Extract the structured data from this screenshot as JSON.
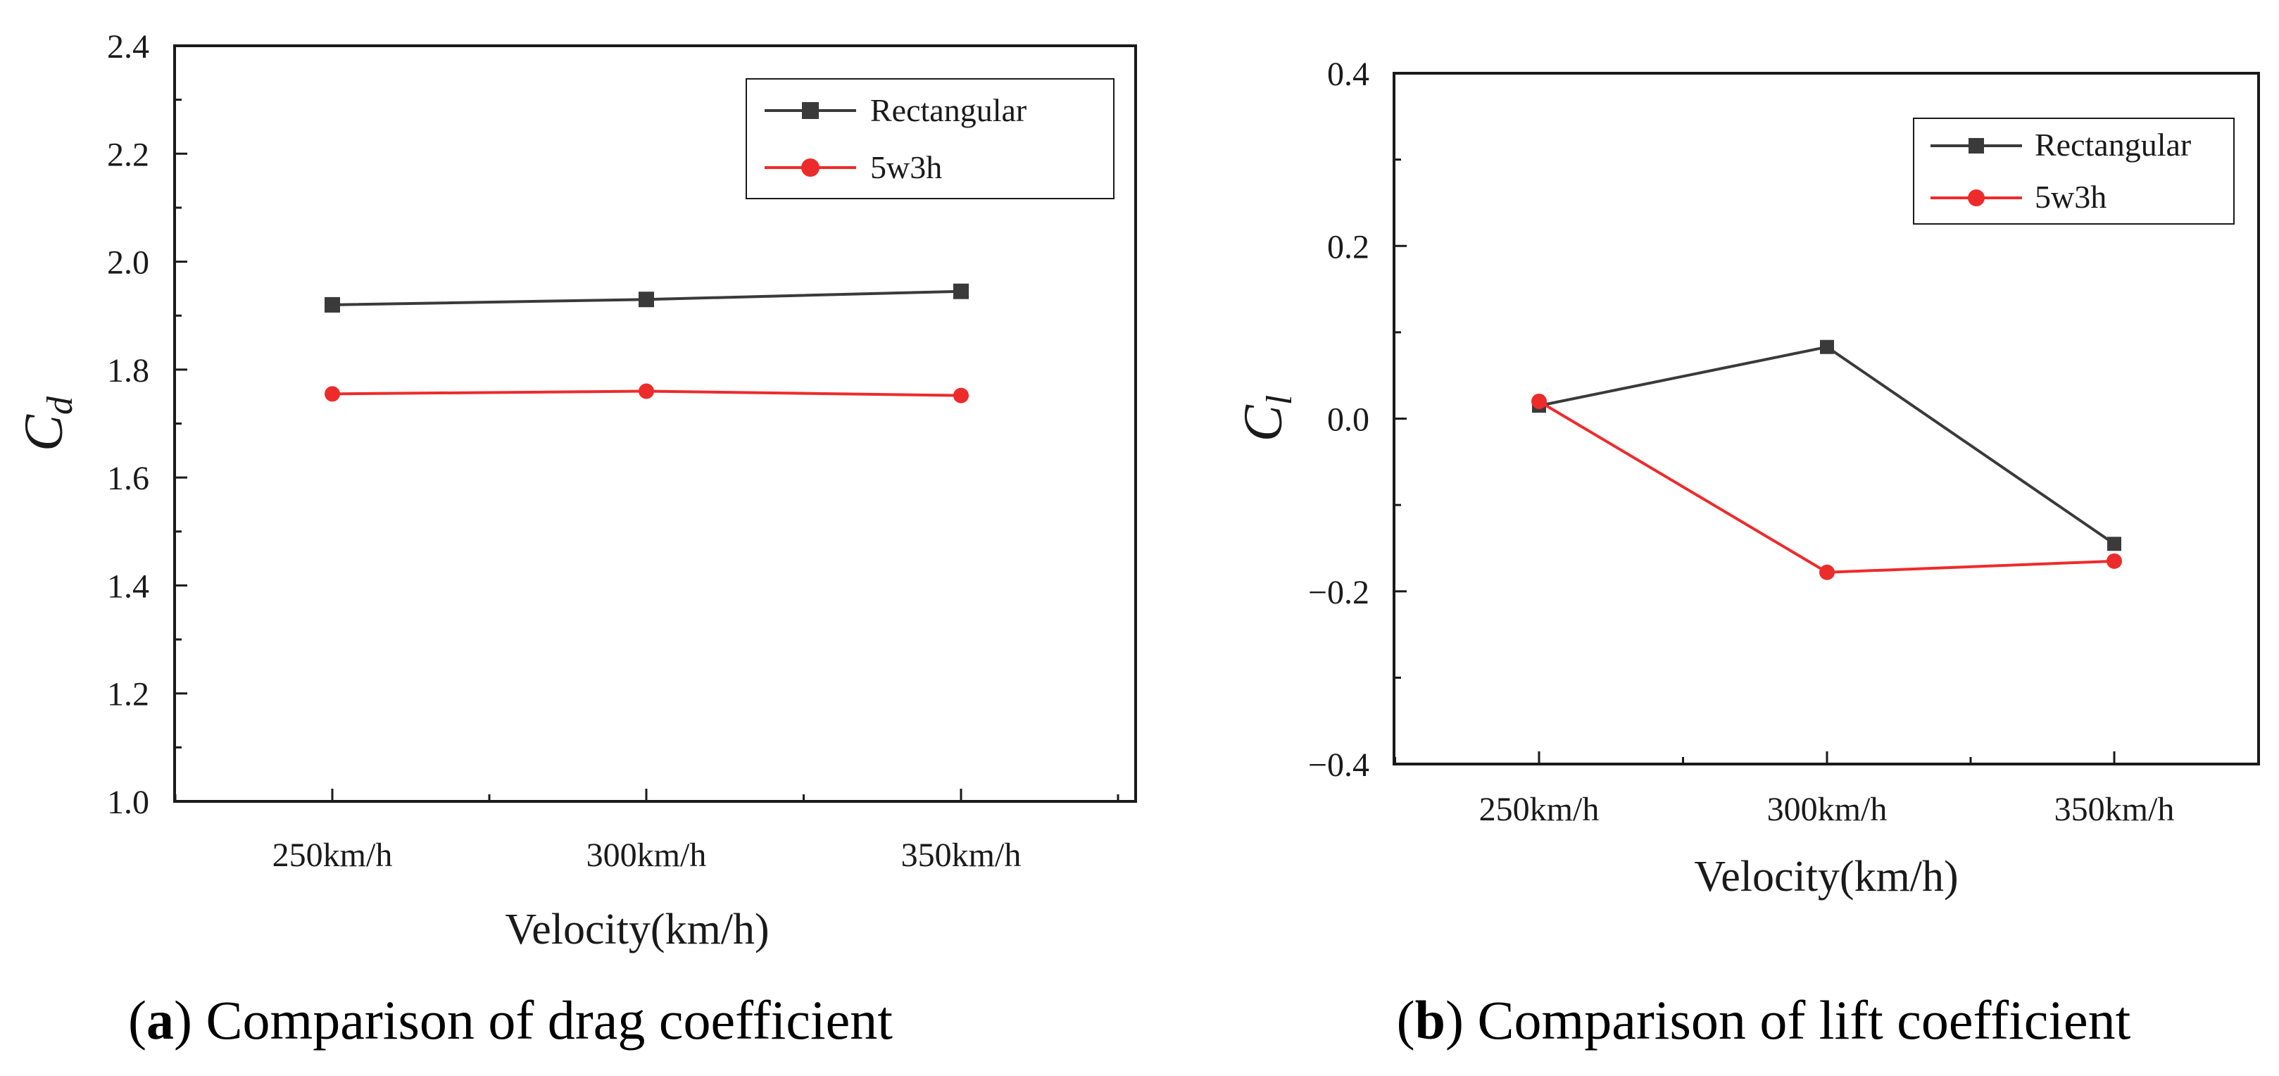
{
  "colors": {
    "rectangular": "#3a3a3a",
    "fivew3h": "#ee2b2b",
    "axis": "#1a1a1a"
  },
  "chart_data": [
    {
      "type": "line",
      "panel": "a",
      "title": "",
      "xlabel": "Velocity(km/h)",
      "ylabel_main": "C",
      "ylabel_sub": "d",
      "categories": [
        "250km/h",
        "300km/h",
        "350km/h"
      ],
      "ylim": [
        1.0,
        2.4
      ],
      "yticks": [
        "1.0",
        "1.2",
        "1.4",
        "1.6",
        "1.8",
        "2.0",
        "2.2",
        "2.4"
      ],
      "series": [
        {
          "name": "Rectangular",
          "marker": "square",
          "values": [
            1.92,
            1.93,
            1.945
          ]
        },
        {
          "name": "5w3h",
          "marker": "circle",
          "values": [
            1.755,
            1.76,
            1.752
          ]
        }
      ],
      "legend_position": "top-right",
      "caption_label": "a",
      "caption_text": " Comparison of drag coefficient"
    },
    {
      "type": "line",
      "panel": "b",
      "title": "",
      "xlabel": "Velocity(km/h)",
      "ylabel_main": "C",
      "ylabel_sub": "l",
      "categories": [
        "250km/h",
        "300km/h",
        "350km/h"
      ],
      "ylim": [
        -0.4,
        0.4
      ],
      "yticks": [
        "−0.4",
        "−0.2",
        "0.0",
        "0.2",
        "0.4"
      ],
      "series": [
        {
          "name": "Rectangular",
          "marker": "square",
          "values": [
            0.015,
            0.083,
            -0.145
          ]
        },
        {
          "name": "5w3h",
          "marker": "circle",
          "values": [
            0.02,
            -0.178,
            -0.165
          ]
        }
      ],
      "legend_position": "top-right",
      "caption_label": "b",
      "caption_text": " Comparison of lift coefficient"
    }
  ]
}
